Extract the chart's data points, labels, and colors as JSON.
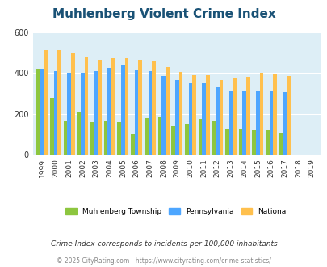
{
  "title": "Muhlenberg Violent Crime Index",
  "years": [
    1999,
    2000,
    2001,
    2002,
    2003,
    2004,
    2005,
    2006,
    2007,
    2008,
    2009,
    2010,
    2011,
    2012,
    2013,
    2014,
    2015,
    2016,
    2017,
    2018,
    2019
  ],
  "muhlenberg": [
    420,
    280,
    165,
    210,
    160,
    165,
    160,
    105,
    180,
    185,
    140,
    150,
    175,
    165,
    130,
    125,
    120,
    120,
    110,
    0,
    0
  ],
  "pennsylvania": [
    420,
    410,
    400,
    400,
    410,
    425,
    440,
    415,
    410,
    385,
    365,
    355,
    350,
    330,
    310,
    315,
    315,
    310,
    305,
    0,
    0
  ],
  "national": [
    510,
    510,
    500,
    475,
    465,
    470,
    470,
    465,
    455,
    430,
    405,
    390,
    390,
    365,
    375,
    380,
    400,
    395,
    385,
    0,
    0
  ],
  "muhlenberg_color": "#8dc63f",
  "pennsylvania_color": "#4da6ff",
  "national_color": "#ffc04d",
  "bg_color": "#ddeef6",
  "ylim": [
    0,
    600
  ],
  "yticks": [
    0,
    200,
    400,
    600
  ],
  "subtitle": "Crime Index corresponds to incidents per 100,000 inhabitants",
  "footer": "© 2025 CityRating.com - https://www.cityrating.com/crime-statistics/",
  "title_color": "#1a5276",
  "subtitle_color": "#333333",
  "footer_color": "#888888"
}
